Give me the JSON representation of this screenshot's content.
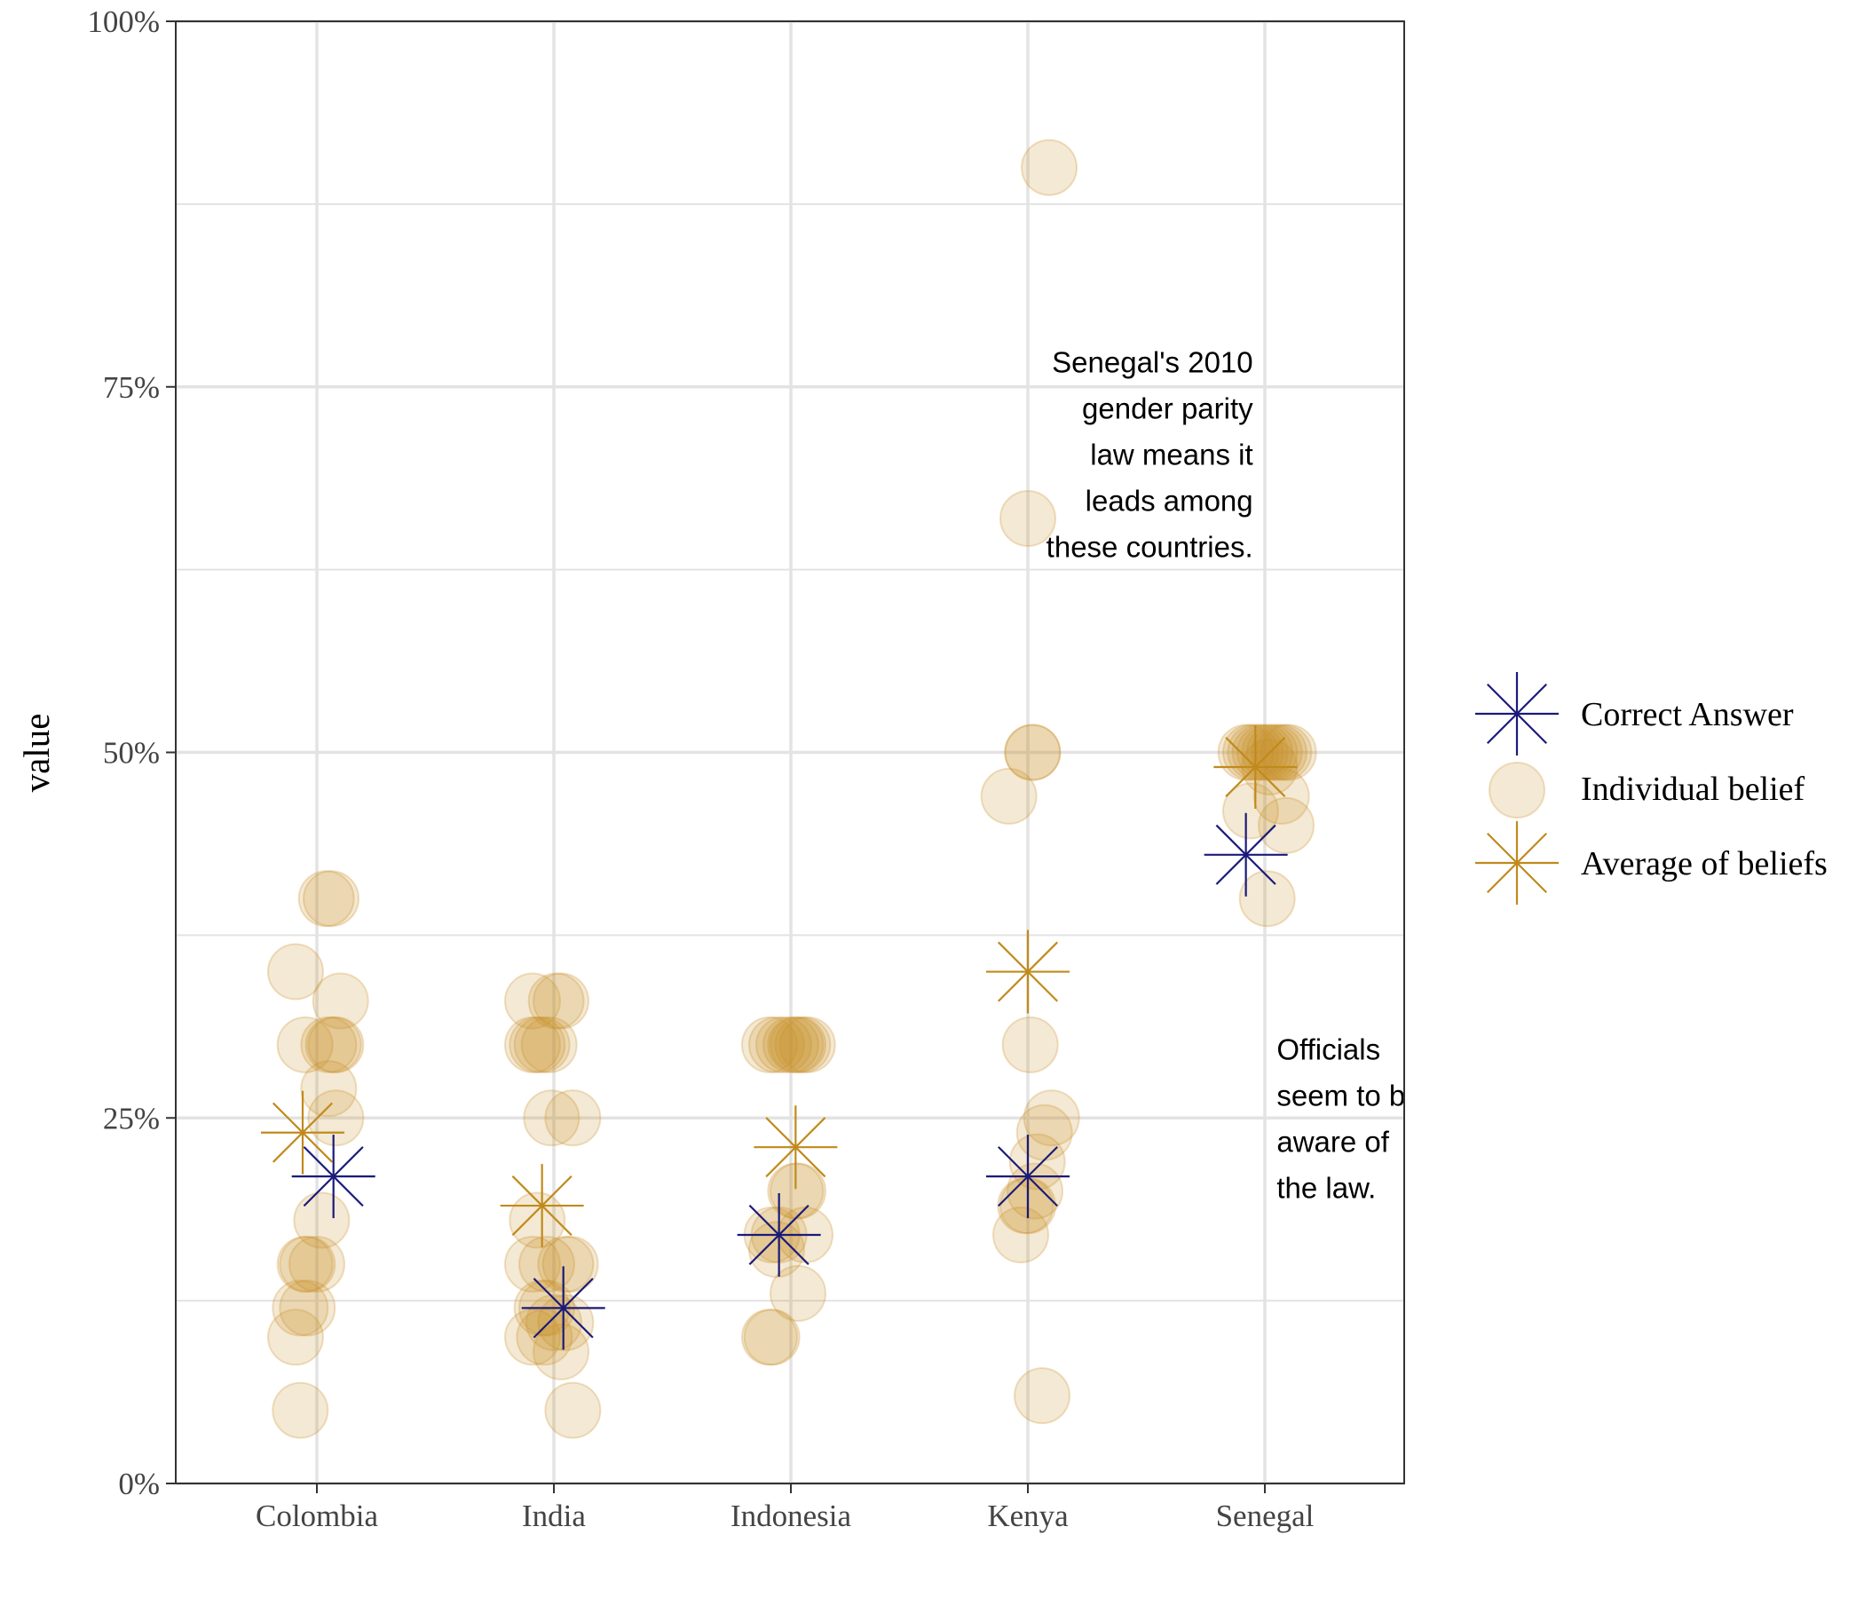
{
  "chart_data": {
    "type": "scatter",
    "ylabel": "value",
    "xlabel": "",
    "ylim": [
      0,
      1
    ],
    "y_ticks": [
      {
        "value": 0,
        "label": "0%"
      },
      {
        "value": 0.25,
        "label": "25%"
      },
      {
        "value": 0.5,
        "label": "50%"
      },
      {
        "value": 0.75,
        "label": "75%"
      },
      {
        "value": 1,
        "label": "100%"
      }
    ],
    "y_minor_grid": [
      0.125,
      0.375,
      0.625,
      0.875
    ],
    "grid": true,
    "categories": [
      "Colombia",
      "India",
      "Indonesia",
      "Kenya",
      "Senegal"
    ],
    "colors": {
      "correct": "#1a1a7a",
      "belief": "#c8902a",
      "average": "#c08a1c",
      "grid": "#e3e3e3",
      "axis": "#333333"
    },
    "series": [
      {
        "name": "Individual belief",
        "marker": "circle",
        "points": [
          {
            "cat": 0,
            "dx": 0.06,
            "y": 0.4
          },
          {
            "cat": 0,
            "dx": 0.04,
            "y": 0.4
          },
          {
            "cat": 0,
            "dx": -0.09,
            "y": 0.35
          },
          {
            "cat": 0,
            "dx": 0.1,
            "y": 0.33
          },
          {
            "cat": 0,
            "dx": -0.05,
            "y": 0.3
          },
          {
            "cat": 0,
            "dx": 0.05,
            "y": 0.3
          },
          {
            "cat": 0,
            "dx": 0.08,
            "y": 0.3
          },
          {
            "cat": 0,
            "dx": 0.07,
            "y": 0.3
          },
          {
            "cat": 0,
            "dx": 0.05,
            "y": 0.27
          },
          {
            "cat": 0,
            "dx": 0.08,
            "y": 0.25
          },
          {
            "cat": 0,
            "dx": 0.02,
            "y": 0.18
          },
          {
            "cat": 0,
            "dx": -0.05,
            "y": 0.15
          },
          {
            "cat": 0,
            "dx": 0.0,
            "y": 0.15
          },
          {
            "cat": 0,
            "dx": -0.04,
            "y": 0.15
          },
          {
            "cat": 0,
            "dx": -0.07,
            "y": 0.12
          },
          {
            "cat": 0,
            "dx": -0.04,
            "y": 0.12
          },
          {
            "cat": 0,
            "dx": -0.09,
            "y": 0.1
          },
          {
            "cat": 0,
            "dx": -0.07,
            "y": 0.05
          },
          {
            "cat": 1,
            "dx": -0.09,
            "y": 0.33
          },
          {
            "cat": 1,
            "dx": 0.03,
            "y": 0.33
          },
          {
            "cat": 1,
            "dx": 0.01,
            "y": 0.33
          },
          {
            "cat": 1,
            "dx": -0.09,
            "y": 0.3
          },
          {
            "cat": 1,
            "dx": -0.05,
            "y": 0.3
          },
          {
            "cat": 1,
            "dx": -0.07,
            "y": 0.3
          },
          {
            "cat": 1,
            "dx": -0.02,
            "y": 0.3
          },
          {
            "cat": 1,
            "dx": -0.01,
            "y": 0.25
          },
          {
            "cat": 1,
            "dx": 0.08,
            "y": 0.25
          },
          {
            "cat": 1,
            "dx": -0.07,
            "y": 0.18
          },
          {
            "cat": 1,
            "dx": -0.09,
            "y": 0.15
          },
          {
            "cat": 1,
            "dx": -0.03,
            "y": 0.15
          },
          {
            "cat": 1,
            "dx": 0.07,
            "y": 0.15
          },
          {
            "cat": 1,
            "dx": 0.05,
            "y": 0.15
          },
          {
            "cat": 1,
            "dx": -0.05,
            "y": 0.12
          },
          {
            "cat": 1,
            "dx": -0.03,
            "y": 0.12
          },
          {
            "cat": 1,
            "dx": 0.05,
            "y": 0.11
          },
          {
            "cat": 1,
            "dx": 0.0,
            "y": 0.11
          },
          {
            "cat": 1,
            "dx": -0.09,
            "y": 0.1
          },
          {
            "cat": 1,
            "dx": -0.04,
            "y": 0.1
          },
          {
            "cat": 1,
            "dx": 0.03,
            "y": 0.09
          },
          {
            "cat": 1,
            "dx": 0.08,
            "y": 0.05
          },
          {
            "cat": 2,
            "dx": -0.09,
            "y": 0.3
          },
          {
            "cat": 2,
            "dx": -0.06,
            "y": 0.3
          },
          {
            "cat": 2,
            "dx": -0.03,
            "y": 0.3
          },
          {
            "cat": 2,
            "dx": 0.0,
            "y": 0.3
          },
          {
            "cat": 2,
            "dx": 0.03,
            "y": 0.3
          },
          {
            "cat": 2,
            "dx": 0.05,
            "y": 0.3
          },
          {
            "cat": 2,
            "dx": 0.07,
            "y": 0.3
          },
          {
            "cat": 2,
            "dx": 0.02,
            "y": 0.3
          },
          {
            "cat": 2,
            "dx": 0.02,
            "y": 0.2
          },
          {
            "cat": 2,
            "dx": 0.03,
            "y": 0.2
          },
          {
            "cat": 2,
            "dx": -0.08,
            "y": 0.17
          },
          {
            "cat": 2,
            "dx": 0.06,
            "y": 0.17
          },
          {
            "cat": 2,
            "dx": -0.05,
            "y": 0.17
          },
          {
            "cat": 2,
            "dx": -0.06,
            "y": 0.16
          },
          {
            "cat": 2,
            "dx": 0.03,
            "y": 0.13
          },
          {
            "cat": 2,
            "dx": -0.08,
            "y": 0.1
          },
          {
            "cat": 2,
            "dx": -0.09,
            "y": 0.1
          },
          {
            "cat": 3,
            "dx": 0.09,
            "y": 0.9
          },
          {
            "cat": 3,
            "dx": 0.0,
            "y": 0.66
          },
          {
            "cat": 3,
            "dx": 0.02,
            "y": 0.5
          },
          {
            "cat": 3,
            "dx": 0.02,
            "y": 0.5
          },
          {
            "cat": 3,
            "dx": -0.08,
            "y": 0.47
          },
          {
            "cat": 3,
            "dx": 0.01,
            "y": 0.3
          },
          {
            "cat": 3,
            "dx": 0.1,
            "y": 0.25
          },
          {
            "cat": 3,
            "dx": 0.07,
            "y": 0.24
          },
          {
            "cat": 3,
            "dx": 0.04,
            "y": 0.22
          },
          {
            "cat": 3,
            "dx": 0.03,
            "y": 0.2
          },
          {
            "cat": 3,
            "dx": -0.01,
            "y": 0.19
          },
          {
            "cat": 3,
            "dx": 0.0,
            "y": 0.19
          },
          {
            "cat": 3,
            "dx": -0.03,
            "y": 0.17
          },
          {
            "cat": 3,
            "dx": 0.06,
            "y": 0.06
          },
          {
            "cat": 4,
            "dx": -0.08,
            "y": 0.5
          },
          {
            "cat": 4,
            "dx": -0.06,
            "y": 0.5
          },
          {
            "cat": 4,
            "dx": -0.04,
            "y": 0.5
          },
          {
            "cat": 4,
            "dx": -0.02,
            "y": 0.5
          },
          {
            "cat": 4,
            "dx": 0.0,
            "y": 0.5
          },
          {
            "cat": 4,
            "dx": 0.02,
            "y": 0.5
          },
          {
            "cat": 4,
            "dx": 0.04,
            "y": 0.5
          },
          {
            "cat": 4,
            "dx": 0.06,
            "y": 0.5
          },
          {
            "cat": 4,
            "dx": 0.1,
            "y": 0.5
          },
          {
            "cat": 4,
            "dx": 0.08,
            "y": 0.5
          },
          {
            "cat": 4,
            "dx": 0.02,
            "y": 0.49
          },
          {
            "cat": 4,
            "dx": 0.07,
            "y": 0.47
          },
          {
            "cat": 4,
            "dx": -0.06,
            "y": 0.46
          },
          {
            "cat": 4,
            "dx": 0.09,
            "y": 0.45
          },
          {
            "cat": 4,
            "dx": 0.01,
            "y": 0.4
          }
        ]
      },
      {
        "name": "Correct Answer",
        "marker": "star",
        "points": [
          {
            "cat": 0,
            "dx": 0.07,
            "y": 0.21
          },
          {
            "cat": 1,
            "dx": 0.04,
            "y": 0.12
          },
          {
            "cat": 2,
            "dx": -0.05,
            "y": 0.17
          },
          {
            "cat": 3,
            "dx": 0.0,
            "y": 0.21
          },
          {
            "cat": 4,
            "dx": -0.08,
            "y": 0.43
          }
        ]
      },
      {
        "name": "Average of beliefs",
        "marker": "star",
        "points": [
          {
            "cat": 0,
            "dx": -0.06,
            "y": 0.24
          },
          {
            "cat": 1,
            "dx": -0.05,
            "y": 0.19
          },
          {
            "cat": 2,
            "dx": 0.02,
            "y": 0.23
          },
          {
            "cat": 3,
            "dx": 0.0,
            "y": 0.35
          },
          {
            "cat": 4,
            "dx": -0.04,
            "y": 0.49
          }
        ]
      }
    ],
    "legend": {
      "placement": "right",
      "items": [
        {
          "label": "Correct Answer",
          "series": "Correct Answer"
        },
        {
          "label": "Individual belief",
          "series": "Individual belief"
        },
        {
          "label": "Average of beliefs",
          "series": "Average of beliefs"
        }
      ]
    },
    "annotations": [
      {
        "id": "senegal-note",
        "lines": [
          "Senegal's 2010",
          "gender parity",
          "law means it",
          "leads among",
          "these countries."
        ],
        "anchor": "end",
        "cat": 3.95,
        "y": 0.76
      },
      {
        "id": "officials-note",
        "lines": [
          "Officials",
          "seem to be",
          "aware of",
          "the law."
        ],
        "anchor": "start",
        "cat": 4.05,
        "y": 0.29,
        "clipped": true
      }
    ]
  }
}
